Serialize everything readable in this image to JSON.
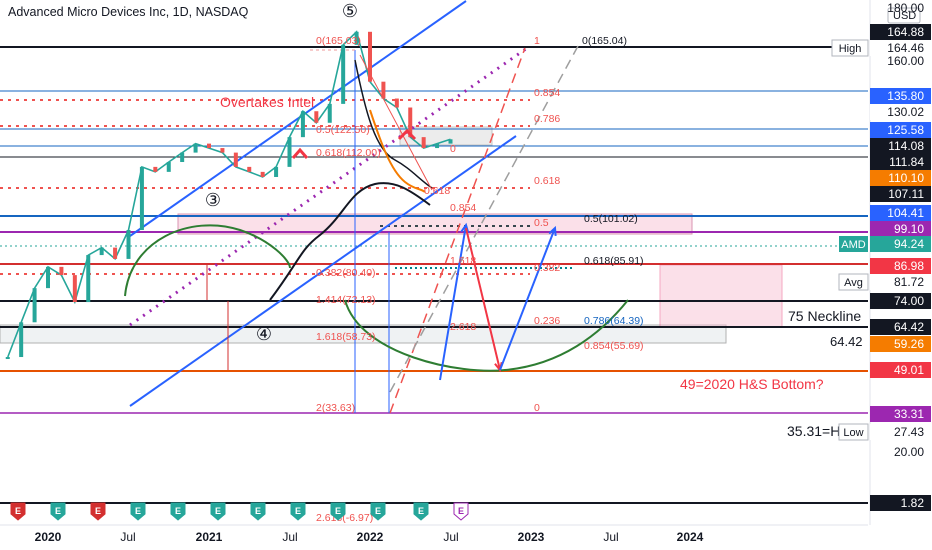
{
  "chart_data": {
    "type": "candlestick-line",
    "title": "Advanced Micro Devices Inc, 1D, NASDAQ",
    "currency": "USD",
    "x_labels": [
      "2020",
      "Jul",
      "2021",
      "Jul",
      "2022",
      "Jul",
      "2023",
      "Jul",
      "2024"
    ],
    "y_ticks": [
      180.0,
      160.0,
      20.0
    ],
    "y_scale": "log",
    "y_range": [
      18,
      185
    ],
    "price_series": {
      "name": "AMD",
      "points": [
        [
          "2019-10",
          32
        ],
        [
          "2019-11",
          38
        ],
        [
          "2019-12",
          45
        ],
        [
          "2020-01",
          50
        ],
        [
          "2020-02",
          48
        ],
        [
          "2020-03",
          42
        ],
        [
          "2020-04",
          53
        ],
        [
          "2020-05",
          55
        ],
        [
          "2020-06",
          52
        ],
        [
          "2020-07",
          60
        ],
        [
          "2020-08",
          82
        ],
        [
          "2020-09",
          80
        ],
        [
          "2020-10",
          84
        ],
        [
          "2020-11",
          88
        ],
        [
          "2020-12",
          92
        ],
        [
          "2021-01",
          90
        ],
        [
          "2021-02",
          88
        ],
        [
          "2021-03",
          82
        ],
        [
          "2021-04",
          80
        ],
        [
          "2021-05",
          78
        ],
        [
          "2021-06",
          82
        ],
        [
          "2021-07",
          95
        ],
        [
          "2021-08",
          108
        ],
        [
          "2021-09",
          102
        ],
        [
          "2021-10",
          112
        ],
        [
          "2021-11",
          150
        ],
        [
          "2021-12",
          160
        ],
        [
          "2022-01",
          125
        ],
        [
          "2022-02",
          115
        ],
        [
          "2022-03",
          110
        ],
        [
          "2022-04",
          95
        ],
        [
          "2022-05",
          90
        ],
        [
          "2022-06",
          92
        ],
        [
          "2022-07",
          94
        ]
      ]
    },
    "axis_badges": [
      {
        "value": "164.88",
        "bg": "#131722",
        "fg": "#ffffff"
      },
      {
        "value": "164.46",
        "bg": "#ffffff",
        "fg": "#131722",
        "label": "High"
      },
      {
        "value": "135.80",
        "bg": "#2962ff",
        "fg": "#ffffff"
      },
      {
        "value": "130.02",
        "bg": "#ffffff",
        "fg": "#131722"
      },
      {
        "value": "125.58",
        "bg": "#2962ff",
        "fg": "#ffffff"
      },
      {
        "value": "114.08",
        "bg": "#131722",
        "fg": "#ffffff"
      },
      {
        "value": "111.84",
        "bg": "#131722",
        "fg": "#ffffff"
      },
      {
        "value": "110.10",
        "bg": "#f57c00",
        "fg": "#ffffff"
      },
      {
        "value": "107.11",
        "bg": "#131722",
        "fg": "#ffffff"
      },
      {
        "value": "104.41",
        "bg": "#2962ff",
        "fg": "#ffffff"
      },
      {
        "value": "99.10",
        "bg": "#9c27b0",
        "fg": "#ffffff"
      },
      {
        "value": "94.24",
        "bg": "#26a69a",
        "fg": "#ffffff",
        "label": "AMD"
      },
      {
        "value": "86.98",
        "bg": "#f23645",
        "fg": "#ffffff"
      },
      {
        "value": "81.72",
        "bg": "#ffffff",
        "fg": "#131722",
        "label": "Avg"
      },
      {
        "value": "74.00",
        "bg": "#131722",
        "fg": "#ffffff"
      },
      {
        "value": "64.42",
        "bg": "#131722",
        "fg": "#ffffff"
      },
      {
        "value": "59.26",
        "bg": "#f57c00",
        "fg": "#ffffff"
      },
      {
        "value": "49.01",
        "bg": "#f23645",
        "fg": "#ffffff"
      },
      {
        "value": "33.31",
        "bg": "#9c27b0",
        "fg": "#ffffff"
      },
      {
        "value": "27.43",
        "bg": "#ffffff",
        "fg": "#131722",
        "label": "Low"
      },
      {
        "value": "1.82",
        "bg": "#131722",
        "fg": "#ffffff"
      }
    ],
    "fib_labels": [
      "0(165.03)",
      "0.854",
      "0.786",
      "0.5(122.50)",
      "0.618(112.00)",
      "0",
      "0.618",
      "0.854",
      "0.618",
      "0.5",
      "0.5(101.02)",
      "0.618(85.91)",
      "1.618",
      "0.382",
      "0.236",
      "1.414(72.13)",
      "1.618(58.73)",
      "0.786(64.39)",
      "0.854(55.69)",
      "2.618",
      "2(33.63)",
      "0",
      "1",
      "0(165.04)",
      "2.618(-6.97)",
      "0.382(80.40)"
    ],
    "annotations": [
      "Overtakes Intel",
      "75 Neckline",
      "64.42",
      "49=2020 H&S Bottom?",
      "35.31=H"
    ],
    "wave_labels": [
      "⑤",
      "③",
      "④"
    ],
    "event_markers": [
      "E",
      "E",
      "E",
      "E",
      "E",
      "E",
      "E",
      "E",
      "E",
      "E",
      "E",
      "E",
      "E",
      "E",
      "E"
    ],
    "colors": {
      "up": "#26a69a",
      "down": "#ef5350",
      "trend": "#2962ff",
      "fib": "#f23645",
      "purple": "#9c27b0",
      "orange": "#f57c00",
      "black": "#131722",
      "green": "#2e7d32"
    }
  }
}
